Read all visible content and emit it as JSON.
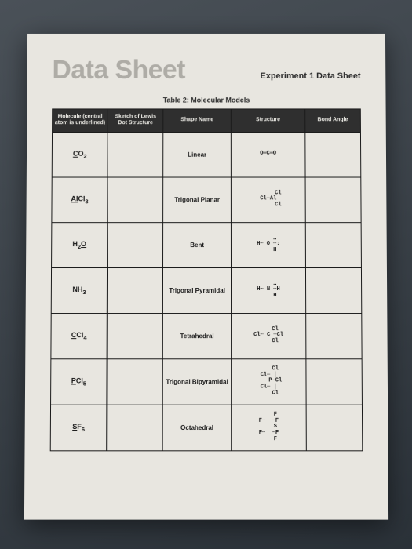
{
  "header": {
    "big_title": "Data Sheet",
    "experiment_title": "Experiment 1 Data Sheet",
    "table_caption": "Table 2: Molecular Models"
  },
  "table": {
    "columns": [
      "Molecule (central atom is underlined)",
      "Sketch of Lewis Dot Structure",
      "Shape Name",
      "Structure",
      "Bond Angle"
    ],
    "rows": [
      {
        "mol_u": "C",
        "mol_rest": "O",
        "mol_sub": "2",
        "shape": "Linear",
        "structure": "O═C═O"
      },
      {
        "mol_u": "Al",
        "mol_rest": "Cl",
        "mol_sub": "3",
        "shape": "Trigonal Planar",
        "structure": "      Cl\nCl─Al\n      Cl"
      },
      {
        "mol_u": "O",
        "mol_prefix": "H",
        "mol_presub": "2",
        "shape": "Bent",
        "structure": "    ‥\nH┄ O ┄:\n    H"
      },
      {
        "mol_u": "N",
        "mol_rest": "H",
        "mol_sub": "3",
        "shape": "Trigonal Pyramidal",
        "structure": "    ‥\nH┄ N ┄H\n    H"
      },
      {
        "mol_u": "C",
        "mol_rest": "Cl",
        "mol_sub": "4",
        "shape": "Tetrahedral",
        "structure": "    Cl\nCl┄ C ┄Cl\n    Cl"
      },
      {
        "mol_u": "P",
        "mol_rest": "Cl",
        "mol_sub": "5",
        "shape": "Trigonal Bipyramidal",
        "structure": "    Cl\nCl┄ │\n    P─Cl\nCl┄ │\n    Cl"
      },
      {
        "mol_u": "S",
        "mol_rest": "F",
        "mol_sub": "6",
        "shape": "Octahedral",
        "structure": "    F\nF┄  ┄F\n    S\nF┄  ┄F\n    F"
      }
    ]
  },
  "colors": {
    "paper": "#e8e6e0",
    "header_bg": "#2f2f2f",
    "header_fg": "#f0efe9",
    "border": "#1a1a1a",
    "title_faded": "#aeaca6"
  }
}
